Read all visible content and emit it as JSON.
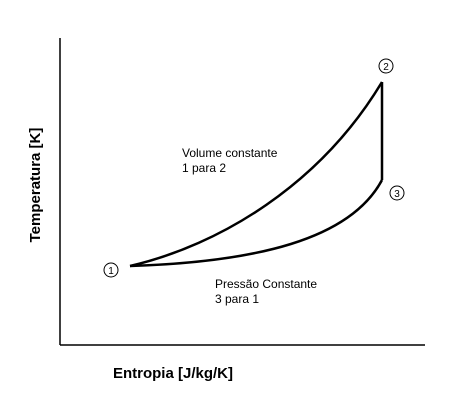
{
  "axes": {
    "x_label": "Entropia [J/kg/K]",
    "y_label": "Temperatura [K]"
  },
  "nodes": [
    {
      "label": "1"
    },
    {
      "label": "2"
    },
    {
      "label": "3"
    }
  ],
  "processes": [
    {
      "name": "Volume constante",
      "detail": "1 para 2"
    },
    {
      "name": "Pressão Constante",
      "detail": "3 para 1"
    }
  ]
}
